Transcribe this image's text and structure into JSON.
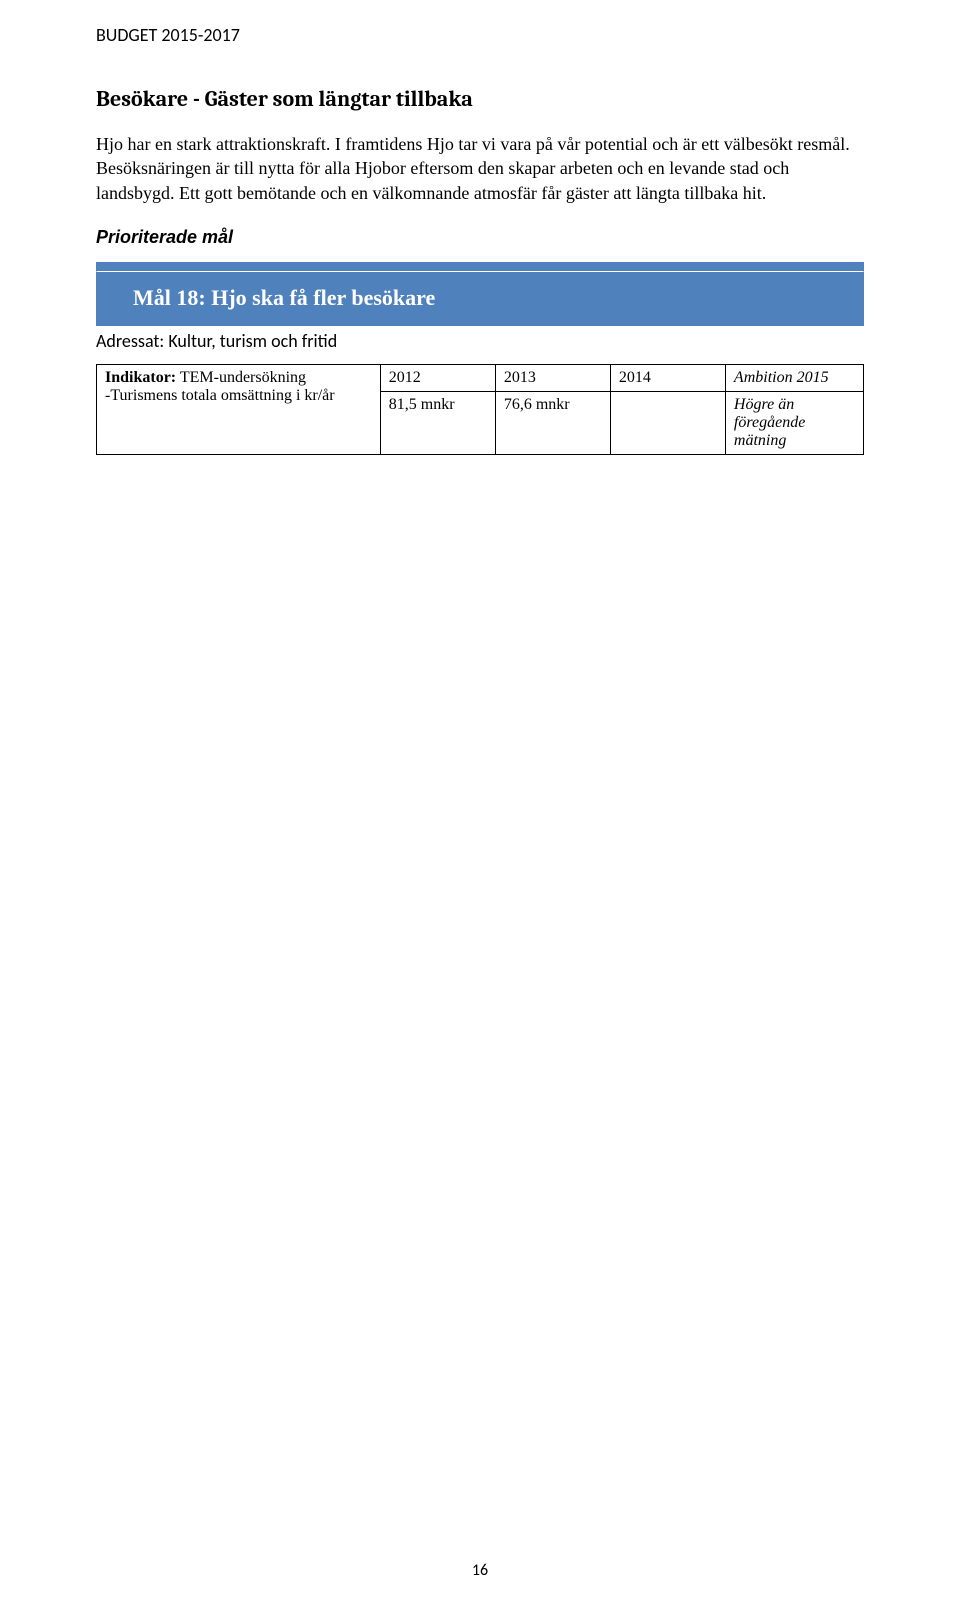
{
  "running_header": "BUDGET 2015-2017",
  "section_title": "Besökare - Gäster som längtar tillbaka",
  "body_paragraph": "Hjo har en stark attraktionskraft. I framtidens Hjo tar vi vara på vår potential och är ett välbesökt resmål. Besöksnäringen är till nytta för alla Hjobor eftersom den skapar arbeten och en levande stad och landsbygd. Ett gott bemötande och en välkomnande atmosfär får gäster att längta tillbaka hit.",
  "prioriterade_label": "Prioriterade mål",
  "goal_title": "Mål 18: Hjo ska få fler besökare",
  "addressat": "Adressat: Kultur, turism och fritid",
  "table": {
    "indicator_label_bold": "Indikator:",
    "indicator_label_rest": " TEM-undersökning",
    "indicator_sub": "-Turismens totala omsättning i kr/år",
    "header_2012": "2012",
    "header_2013": "2013",
    "header_2014": "2014",
    "header_ambition": "Ambition 2015",
    "val_2012": "81,5 mnkr",
    "val_2013": "76,6 mnkr",
    "val_2014": "",
    "val_ambition": "Högre än föregående mätning"
  },
  "page_number": "16",
  "colors": {
    "goal_bg": "#4f81bd",
    "goal_text": "#ffffff",
    "page_bg": "#ffffff",
    "text": "#000000",
    "table_border": "#000000"
  }
}
